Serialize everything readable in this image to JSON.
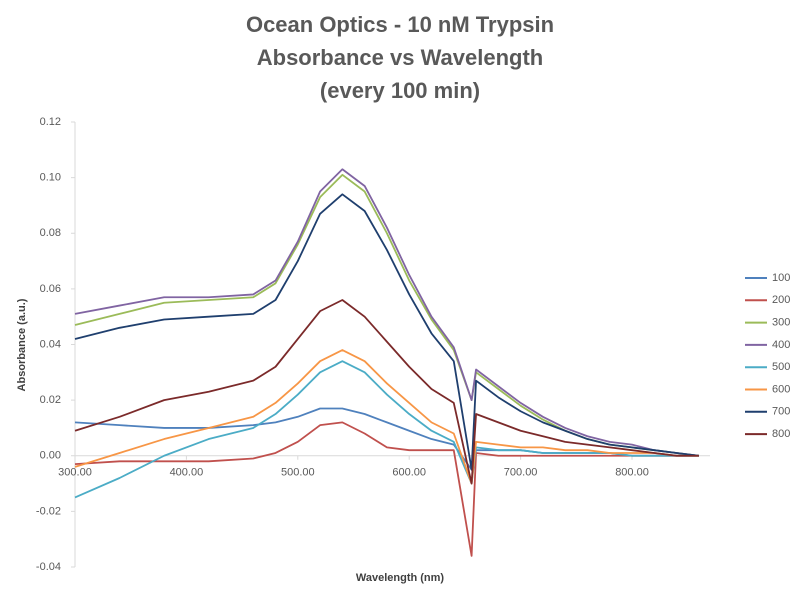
{
  "chart_data": {
    "type": "line",
    "title": [
      "Ocean Optics - 10 nM Trypsin",
      "Absorbance vs Wavelength",
      "(every 100 min)"
    ],
    "x_label": "Wavelength (nm)",
    "y_label": "Absorbance (a.u.)",
    "x": [
      300,
      340,
      380,
      420,
      460,
      480,
      500,
      520,
      540,
      560,
      580,
      600,
      620,
      640,
      656,
      660,
      680,
      700,
      720,
      740,
      760,
      780,
      800,
      820,
      840,
      860
    ],
    "xlim": [
      300,
      870
    ],
    "xticks": [
      {
        "value": 300,
        "label": "300.00"
      },
      {
        "value": 400,
        "label": "400.00"
      },
      {
        "value": 500,
        "label": "500.00"
      },
      {
        "value": 600,
        "label": "600.00"
      },
      {
        "value": 700,
        "label": "700.00"
      },
      {
        "value": 800,
        "label": "800.00"
      }
    ],
    "ylim": [
      -0.04,
      0.12
    ],
    "yticks": [
      -0.04,
      -0.02,
      {
        "value": 0,
        "label": "0.00"
      },
      0.02,
      0.04,
      0.06,
      0.08,
      {
        "value": 0.1,
        "label": "0.10"
      },
      0.12
    ],
    "legend": "right",
    "series": [
      {
        "name": "100",
        "color": "#4f81bd",
        "values": [
          0.012,
          0.011,
          0.01,
          0.01,
          0.011,
          0.012,
          0.014,
          0.017,
          0.017,
          0.015,
          0.012,
          0.009,
          0.006,
          0.004,
          -0.005,
          0.002,
          0.002,
          0.002,
          0.001,
          0.001,
          0.001,
          0.001,
          0.0,
          0.0,
          0.0,
          0.0
        ]
      },
      {
        "name": "200",
        "color": "#c0504d",
        "values": [
          -0.003,
          -0.002,
          -0.002,
          -0.002,
          -0.001,
          0.001,
          0.005,
          0.011,
          0.012,
          0.008,
          0.003,
          0.002,
          0.002,
          0.002,
          -0.036,
          0.001,
          0.0,
          0.0,
          0.0,
          0.0,
          0.0,
          0.0,
          0.0,
          0.0,
          0.0,
          0.0
        ]
      },
      {
        "name": "300",
        "color": "#9bbb59",
        "values": [
          0.047,
          0.051,
          0.055,
          0.056,
          0.057,
          0.062,
          0.076,
          0.093,
          0.101,
          0.095,
          0.08,
          0.063,
          0.049,
          0.038,
          0.02,
          0.03,
          0.024,
          0.018,
          0.013,
          0.009,
          0.006,
          0.004,
          0.003,
          0.002,
          0.001,
          0.0
        ]
      },
      {
        "name": "400",
        "color": "#8064a2",
        "values": [
          0.051,
          0.054,
          0.057,
          0.057,
          0.058,
          0.063,
          0.077,
          0.095,
          0.103,
          0.097,
          0.082,
          0.065,
          0.05,
          0.039,
          0.02,
          0.031,
          0.025,
          0.019,
          0.014,
          0.01,
          0.007,
          0.005,
          0.004,
          0.002,
          0.001,
          0.0
        ]
      },
      {
        "name": "500",
        "color": "#4bacc6",
        "values": [
          -0.015,
          -0.008,
          0.0,
          0.006,
          0.01,
          0.015,
          0.022,
          0.03,
          0.034,
          0.03,
          0.022,
          0.015,
          0.009,
          0.005,
          -0.01,
          0.003,
          0.002,
          0.002,
          0.001,
          0.001,
          0.001,
          0.001,
          0.0,
          0.0,
          0.0,
          0.0
        ]
      },
      {
        "name": "600",
        "color": "#f79646",
        "values": [
          -0.004,
          0.001,
          0.006,
          0.01,
          0.014,
          0.019,
          0.026,
          0.034,
          0.038,
          0.034,
          0.026,
          0.019,
          0.012,
          0.008,
          -0.01,
          0.005,
          0.004,
          0.003,
          0.003,
          0.002,
          0.002,
          0.001,
          0.001,
          0.001,
          0.0,
          0.0
        ]
      },
      {
        "name": "700",
        "color": "#1f3f6e",
        "values": [
          0.042,
          0.046,
          0.049,
          0.05,
          0.051,
          0.056,
          0.07,
          0.087,
          0.094,
          0.088,
          0.074,
          0.058,
          0.044,
          0.034,
          -0.005,
          0.027,
          0.021,
          0.016,
          0.012,
          0.009,
          0.006,
          0.004,
          0.003,
          0.002,
          0.001,
          0.0
        ]
      },
      {
        "name": "800",
        "color": "#7b2a2a",
        "values": [
          0.009,
          0.014,
          0.02,
          0.023,
          0.027,
          0.032,
          0.042,
          0.052,
          0.056,
          0.05,
          0.041,
          0.032,
          0.024,
          0.019,
          -0.01,
          0.015,
          0.012,
          0.009,
          0.007,
          0.005,
          0.004,
          0.003,
          0.002,
          0.001,
          0.0,
          0.0
        ]
      }
    ]
  }
}
